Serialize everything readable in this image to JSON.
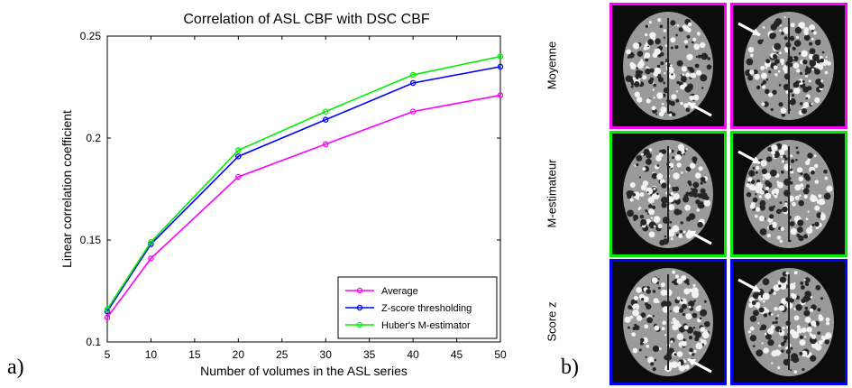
{
  "panel_labels": {
    "a": "a)",
    "b": "b)"
  },
  "chart_data": {
    "type": "line",
    "title": "Correlation of ASL CBF with DSC CBF",
    "xlabel": "Number of volumes in the ASL series",
    "ylabel": "Linear correlation coefficient",
    "x": [
      5,
      10,
      20,
      30,
      40,
      50
    ],
    "xlim": [
      5,
      50
    ],
    "ylim": [
      0.1,
      0.25
    ],
    "xticks": [
      5,
      10,
      15,
      20,
      25,
      30,
      35,
      40,
      45,
      50
    ],
    "yticks": [
      0.1,
      0.15,
      0.2,
      0.25
    ],
    "ytick_labels": [
      "0.1",
      "0.15",
      "0.2",
      "0.25"
    ],
    "grid": false,
    "legend_position": "bottom-right",
    "series": [
      {
        "name": "Average",
        "color": "#ff00ff",
        "values": [
          0.112,
          0.141,
          0.181,
          0.197,
          0.213,
          0.221
        ]
      },
      {
        "name": "Z-score thresholding",
        "color": "#0000ff",
        "values": [
          0.115,
          0.148,
          0.191,
          0.209,
          0.227,
          0.235
        ]
      },
      {
        "name": "Huber's M-estimator",
        "color": "#00ee00",
        "values": [
          0.116,
          0.149,
          0.194,
          0.213,
          0.231,
          0.24
        ]
      }
    ]
  },
  "brain_panels": {
    "rows": [
      {
        "label": "Moyenne",
        "border_color": "#ff00ff"
      },
      {
        "label": "M-estimateur",
        "border_color": "#00ee00"
      },
      {
        "label": "Score z",
        "border_color": "#0000ff"
      }
    ],
    "annotation_icon": "arrow-icon"
  }
}
